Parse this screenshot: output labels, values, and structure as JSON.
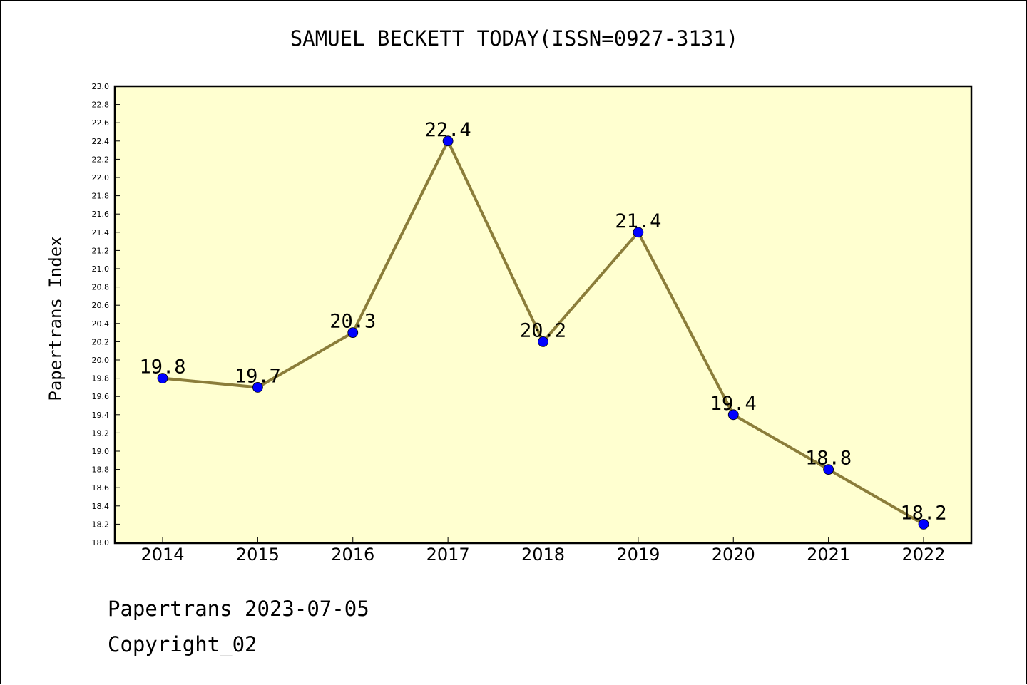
{
  "chart_data": {
    "type": "line",
    "title": "SAMUEL BECKETT TODAY(ISSN=0927-3131)",
    "xlabel": "",
    "ylabel": "Papertrans Index",
    "categories": [
      "2014",
      "2015",
      "2016",
      "2017",
      "2018",
      "2019",
      "2020",
      "2021",
      "2022"
    ],
    "values": [
      19.8,
      19.7,
      20.3,
      22.4,
      20.2,
      21.4,
      19.4,
      18.8,
      18.2
    ],
    "data_labels": [
      "19.8",
      "19.7",
      "20.3",
      "22.4",
      "20.2",
      "21.4",
      "19.4",
      "18.8",
      "18.2"
    ],
    "ylim": [
      18.0,
      23.0
    ],
    "ytick_step": 0.2,
    "grid": false,
    "colors": {
      "plot_background": "#ffffd0",
      "line": "#8b7d3a",
      "marker": "#0000ff"
    }
  },
  "footer": {
    "date": "Papertrans 2023-07-05",
    "copyright": "Copyright_02"
  }
}
